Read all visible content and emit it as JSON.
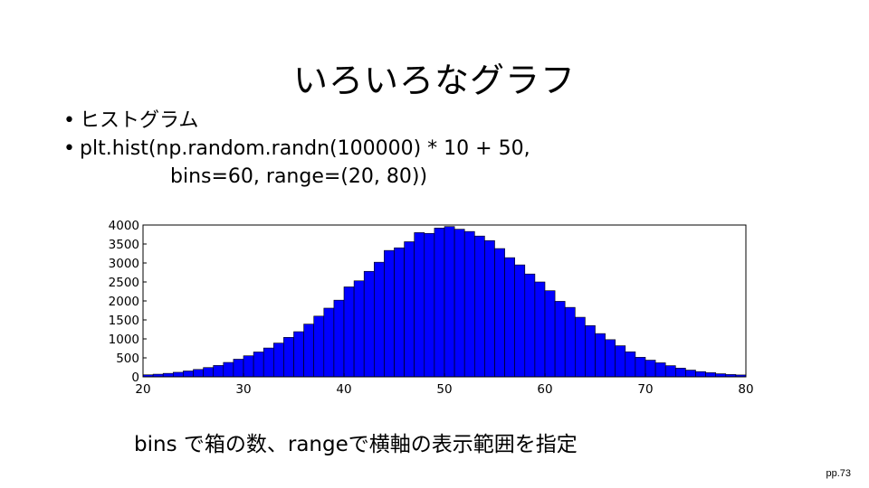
{
  "slide": {
    "title": "いろいろなグラフ",
    "bullets": [
      "ヒストグラム",
      "plt.hist(np.random.randn(100000) * 10 + 50,"
    ],
    "bullet_continuation": "bins=60, range=(20, 80))",
    "caption": "bins で箱の数、rangeで横軸の表示範囲を指定",
    "page_number": "pp.73"
  },
  "chart_data": {
    "type": "bar",
    "bar_color": "#0000ff",
    "edge_color": "#000000",
    "grid": false,
    "bin_edges_range": [
      20,
      80
    ],
    "bin_width": 1,
    "xlim": [
      20,
      80
    ],
    "ylim": [
      0,
      4000
    ],
    "xticks": [
      20,
      30,
      40,
      50,
      60,
      70,
      80
    ],
    "yticks": [
      0,
      500,
      1000,
      1500,
      2000,
      2500,
      3000,
      3500,
      4000
    ],
    "values": [
      54,
      70,
      92,
      120,
      155,
      195,
      245,
      300,
      380,
      465,
      555,
      655,
      760,
      890,
      1040,
      1190,
      1390,
      1600,
      1810,
      2020,
      2370,
      2530,
      2780,
      3020,
      3330,
      3400,
      3560,
      3800,
      3780,
      3920,
      3960,
      3890,
      3830,
      3710,
      3590,
      3380,
      3140,
      2950,
      2710,
      2500,
      2270,
      1990,
      1830,
      1570,
      1350,
      1140,
      980,
      820,
      660,
      515,
      440,
      370,
      295,
      230,
      178,
      138,
      110,
      82,
      62,
      50
    ]
  }
}
